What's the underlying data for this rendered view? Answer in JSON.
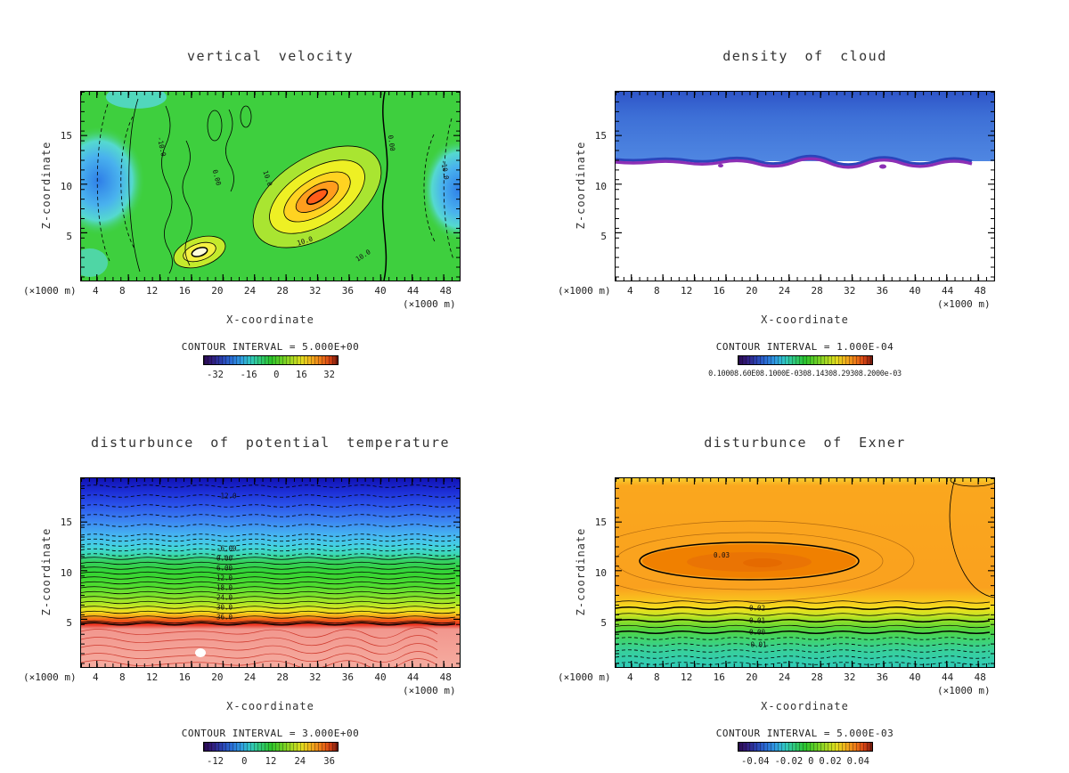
{
  "page": {
    "background": "#ffffff"
  },
  "chart_data": [
    {
      "type": "heatmap",
      "panel": "top-left",
      "title": "vertical velocity",
      "xlabel": "X-coordinate",
      "ylabel": "Z-coordinate",
      "x_unit": "(×1000 m)",
      "x_ticks": [
        4,
        8,
        12,
        16,
        20,
        24,
        28,
        32,
        36,
        40,
        44,
        48
      ],
      "y_ticks": [
        "15",
        "10",
        "5"
      ],
      "x_range": [
        2,
        50
      ],
      "y_range": [
        0,
        19.5
      ],
      "grid": false,
      "legend": "colorbar-bottom",
      "contour_interval_text": "CONTOUR INTERVAL = 5.000E+00",
      "contour_interval": 5.0,
      "contour_line_labels": [
        "-10.0",
        "0.00",
        "10.0",
        "10.0",
        "10.0",
        "0.00",
        "-10.0"
      ],
      "colorbar_ticks": [
        "-32",
        "-16",
        "0",
        "16",
        "32"
      ],
      "colorbar_range": [
        -40,
        40
      ],
      "regions": [
        {
          "name": "downdraft-left-boundary",
          "x": [
            2,
            10
          ],
          "z": [
            2,
            18
          ],
          "value": "<= -10"
        },
        {
          "name": "downdraft-right-boundary",
          "x": [
            45,
            50
          ],
          "z": [
            3,
            15
          ],
          "value": "<= -10"
        },
        {
          "name": "updraft-core",
          "x": [
            24,
            36
          ],
          "z": [
            3,
            13
          ],
          "value": ">= +30"
        },
        {
          "name": "secondary-updraft",
          "x": [
            15,
            19
          ],
          "z": [
            2,
            5
          ],
          "value": ">= +15"
        },
        {
          "name": "zero-contour",
          "x": [
            40,
            41
          ],
          "z": [
            0,
            19.5
          ],
          "value": "0"
        }
      ]
    },
    {
      "type": "heatmap",
      "panel": "top-right",
      "title": "density of cloud",
      "xlabel": "X-coordinate",
      "ylabel": "Z-coordinate",
      "x_unit": "(×1000 m)",
      "x_ticks": [
        4,
        8,
        12,
        16,
        20,
        24,
        28,
        32,
        36,
        40,
        44,
        48
      ],
      "y_ticks": [
        "15",
        "10",
        "5"
      ],
      "x_range": [
        2,
        50
      ],
      "y_range": [
        0,
        19.5
      ],
      "grid": false,
      "legend": "colorbar-bottom",
      "contour_interval_text": "CONTOUR INTERVAL = 1.000E-04",
      "contour_interval": 0.0001,
      "colorbar_label_text": "0.10008.60E08.1000E-0308.14308.29308.2000e-03",
      "regions": [
        {
          "name": "cloud-layer",
          "x": [
            2,
            50
          ],
          "z": [
            12.3,
            19.5
          ],
          "value": ">= 1.0E-04"
        },
        {
          "name": "cloud-base-contour",
          "z": 12.3
        }
      ]
    },
    {
      "type": "heatmap",
      "panel": "bottom-left",
      "title": "disturbunce of potential temperature",
      "xlabel": "X-coordinate",
      "ylabel": "Z-coordinate",
      "x_unit": "(×1000 m)",
      "x_ticks": [
        4,
        8,
        12,
        16,
        20,
        24,
        28,
        32,
        36,
        40,
        44,
        48
      ],
      "y_ticks": [
        "15",
        "10",
        "5"
      ],
      "x_range": [
        2,
        50
      ],
      "y_range": [
        0,
        19.5
      ],
      "grid": false,
      "legend": "colorbar-bottom",
      "contour_interval_text": "CONTOUR INTERVAL = 3.000E+00",
      "contour_interval": 3.0,
      "contour_line_labels": [
        "-12.0",
        "-6.00",
        "0.00",
        "6.00",
        "12.0",
        "18.0",
        "24.0",
        "30.0",
        "36.0"
      ],
      "colorbar_ticks": [
        "-12",
        "0",
        "12",
        "24",
        "36"
      ],
      "labeled_contour_heights": [
        {
          "value": -12,
          "z": 17.6
        },
        {
          "value": -6,
          "z": 12.2
        },
        {
          "value": 0,
          "z": 11.2
        },
        {
          "value": 6,
          "z": 10.2
        },
        {
          "value": 12,
          "z": 9.2
        },
        {
          "value": 18,
          "z": 8.1
        },
        {
          "value": 24,
          "z": 7.1
        },
        {
          "value": 30,
          "z": 6.1
        },
        {
          "value": 36,
          "z": 5.1
        }
      ]
    },
    {
      "type": "heatmap",
      "panel": "bottom-right",
      "title": "disturbunce of Exner",
      "xlabel": "X-coordinate",
      "ylabel": "Z-coordinate",
      "x_unit": "(×1000 m)",
      "x_ticks": [
        4,
        8,
        12,
        16,
        20,
        24,
        28,
        32,
        36,
        40,
        44,
        48
      ],
      "y_ticks": [
        "15",
        "10",
        "5"
      ],
      "x_range": [
        2,
        50
      ],
      "y_range": [
        0,
        19.5
      ],
      "grid": false,
      "legend": "colorbar-bottom",
      "contour_interval_text": "CONTOUR INTERVAL = 5.000E-03",
      "contour_interval": 0.005,
      "contour_line_labels": [
        "0.03",
        "0.02",
        "0.01",
        "0.00",
        "-0.01"
      ],
      "colorbar_ticks": [
        "-0.04",
        "-0.02",
        "0",
        "0.02",
        "0.04"
      ],
      "labeled_contours": [
        {
          "value": 0.03,
          "shape": "closed",
          "x": [
            6,
            33
          ],
          "z": [
            9.5,
            13.2
          ]
        },
        {
          "value": 0.02,
          "z": 6.3
        },
        {
          "value": 0.01,
          "z": 5.0
        },
        {
          "value": 0.0,
          "z": 3.8
        },
        {
          "value": -0.01,
          "z": 2.7
        }
      ]
    }
  ]
}
